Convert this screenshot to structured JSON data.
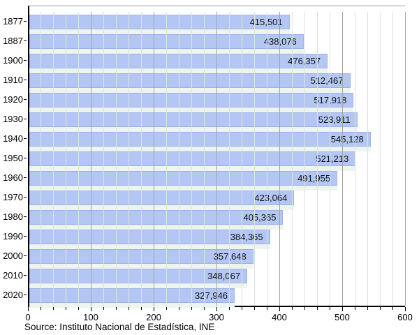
{
  "chart_data": {
    "type": "bar",
    "orientation": "horizontal",
    "categories": [
      "1877",
      "1887",
      "1900",
      "1910",
      "1920",
      "1930",
      "1940",
      "1950",
      "1960",
      "1970",
      "1980",
      "1990",
      "2000",
      "2010",
      "2020"
    ],
    "values": [
      415501,
      438076,
      476357,
      512467,
      517918,
      523911,
      545128,
      521213,
      491955,
      423064,
      405365,
      384365,
      357648,
      348067,
      327946
    ],
    "value_labels": [
      "415,501",
      "438,076",
      "476,357",
      "512,467",
      "517,918",
      "523,911",
      "545,128",
      "521,213",
      "491,955",
      "423,064",
      "405,365",
      "384,365",
      "357,648",
      "348,067",
      "327,946"
    ],
    "xlim": [
      0,
      600
    ],
    "x_ticks": [
      "0",
      "100",
      "200",
      "300",
      "400",
      "500",
      "600"
    ],
    "x_minor_step_units": 20,
    "grid": "on",
    "legend": "none",
    "source": "Source: Instituto Nacional de Estadística, INE"
  },
  "colors": {
    "bar": "#b4c7f4",
    "bar_border": "rgba(130,150,215,0.45)",
    "understrip": "#edf5ee",
    "grid_minor": "#dbe4db",
    "grid_major": "#a3a3a3",
    "axis": "#000000"
  }
}
